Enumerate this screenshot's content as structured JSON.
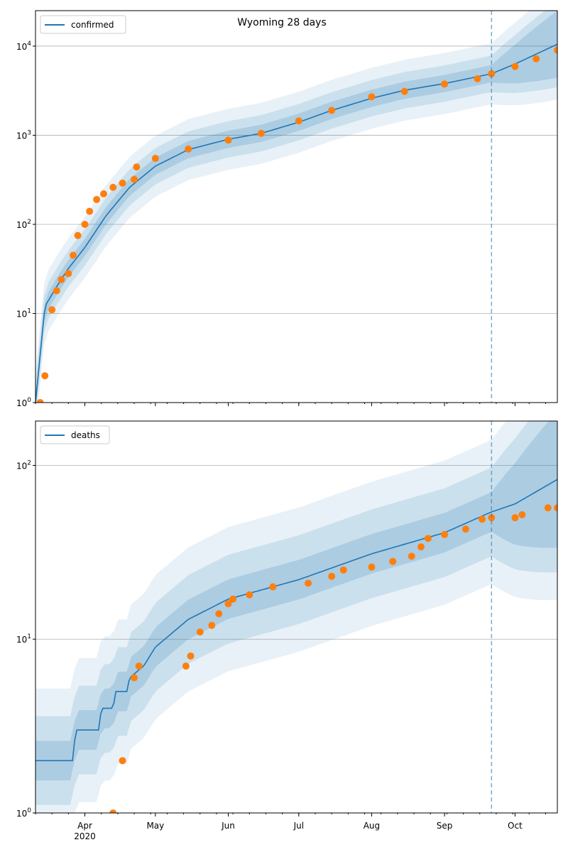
{
  "figure_title": "Wyoming 28 days",
  "colors": {
    "line": "#1f77b4",
    "points": "#ff7f0e",
    "band": "#1f77b4",
    "grid": "#b0b0b0",
    "divider": "#1f77b4"
  },
  "x_axis": {
    "ticks": [
      "Apr",
      "May",
      "Jun",
      "Jul",
      "Aug",
      "Sep",
      "Oct"
    ],
    "year_label": "2020",
    "start": "2020-03-11",
    "end": "2020-10-19",
    "forecast_start": "2020-09-21"
  },
  "chart_data": [
    {
      "type": "line",
      "legend": [
        "confirmed"
      ],
      "legend_position": "top-left",
      "yscale": "log",
      "ylim": [
        1,
        25000
      ],
      "yticks": [
        "10^0",
        "10^1",
        "10^2",
        "10^3",
        "10^4"
      ],
      "grid": "horizontal",
      "series": [
        {
          "name": "confirmed",
          "x": [
            "2020-03-11",
            "2020-03-15",
            "2020-03-20",
            "2020-03-25",
            "2020-04-01",
            "2020-04-10",
            "2020-04-20",
            "2020-05-01",
            "2020-05-15",
            "2020-06-01",
            "2020-06-15",
            "2020-07-01",
            "2020-07-15",
            "2020-08-01",
            "2020-08-15",
            "2020-09-01",
            "2020-09-21",
            "2020-10-01",
            "2020-10-19"
          ],
          "y": [
            1,
            12,
            20,
            32,
            55,
            125,
            260,
            450,
            690,
            900,
            1050,
            1400,
            1900,
            2600,
            3200,
            3800,
            4900,
            6300,
            10500
          ]
        }
      ],
      "observed": [
        {
          "x": "2020-03-13",
          "y": 1
        },
        {
          "x": "2020-03-15",
          "y": 2
        },
        {
          "x": "2020-03-18",
          "y": 11
        },
        {
          "x": "2020-03-20",
          "y": 18
        },
        {
          "x": "2020-03-22",
          "y": 24
        },
        {
          "x": "2020-03-25",
          "y": 28
        },
        {
          "x": "2020-03-27",
          "y": 45
        },
        {
          "x": "2020-03-29",
          "y": 75
        },
        {
          "x": "2020-04-01",
          "y": 100
        },
        {
          "x": "2020-04-03",
          "y": 140
        },
        {
          "x": "2020-04-06",
          "y": 190
        },
        {
          "x": "2020-04-09",
          "y": 220
        },
        {
          "x": "2020-04-13",
          "y": 260
        },
        {
          "x": "2020-04-17",
          "y": 290
        },
        {
          "x": "2020-04-22",
          "y": 320
        },
        {
          "x": "2020-04-23",
          "y": 440
        },
        {
          "x": "2020-05-01",
          "y": 550
        },
        {
          "x": "2020-05-15",
          "y": 700
        },
        {
          "x": "2020-06-01",
          "y": 880
        },
        {
          "x": "2020-06-15",
          "y": 1050
        },
        {
          "x": "2020-07-01",
          "y": 1450
        },
        {
          "x": "2020-07-15",
          "y": 1900
        },
        {
          "x": "2020-08-01",
          "y": 2700
        },
        {
          "x": "2020-08-15",
          "y": 3100
        },
        {
          "x": "2020-09-01",
          "y": 3750
        },
        {
          "x": "2020-09-15",
          "y": 4300
        },
        {
          "x": "2020-09-21",
          "y": 4900
        },
        {
          "x": "2020-10-01",
          "y": 5900
        },
        {
          "x": "2020-10-10",
          "y": 7200
        },
        {
          "x": "2020-10-19",
          "y": 9000
        }
      ]
    },
    {
      "type": "line",
      "legend": [
        "deaths"
      ],
      "legend_position": "top-left",
      "yscale": "log",
      "ylim": [
        1,
        180
      ],
      "yticks": [
        "10^0",
        "10^1",
        "10^2"
      ],
      "grid": "horizontal",
      "series": [
        {
          "name": "deaths",
          "x": [
            "2020-03-11",
            "2020-03-27",
            "2020-03-28",
            "2020-04-07",
            "2020-04-08",
            "2020-04-13",
            "2020-04-14",
            "2020-04-19",
            "2020-04-20",
            "2020-04-26",
            "2020-05-01",
            "2020-05-15",
            "2020-06-01",
            "2020-07-01",
            "2020-08-01",
            "2020-09-01",
            "2020-09-21",
            "2020-10-01",
            "2020-10-19"
          ],
          "y": [
            2,
            2,
            3,
            3,
            4,
            4,
            5,
            5,
            6,
            7,
            9,
            13,
            17,
            22,
            31,
            41,
            54,
            60,
            83
          ]
        }
      ],
      "observed": [
        {
          "x": "2020-04-13",
          "y": 1
        },
        {
          "x": "2020-04-17",
          "y": 2
        },
        {
          "x": "2020-04-22",
          "y": 6
        },
        {
          "x": "2020-04-24",
          "y": 7
        },
        {
          "x": "2020-05-14",
          "y": 7
        },
        {
          "x": "2020-05-16",
          "y": 8
        },
        {
          "x": "2020-05-20",
          "y": 11
        },
        {
          "x": "2020-05-25",
          "y": 12
        },
        {
          "x": "2020-05-28",
          "y": 14
        },
        {
          "x": "2020-06-01",
          "y": 16
        },
        {
          "x": "2020-06-03",
          "y": 17
        },
        {
          "x": "2020-06-10",
          "y": 18
        },
        {
          "x": "2020-06-20",
          "y": 20
        },
        {
          "x": "2020-07-05",
          "y": 21
        },
        {
          "x": "2020-07-15",
          "y": 23
        },
        {
          "x": "2020-07-20",
          "y": 25
        },
        {
          "x": "2020-08-01",
          "y": 26
        },
        {
          "x": "2020-08-10",
          "y": 28
        },
        {
          "x": "2020-08-18",
          "y": 30
        },
        {
          "x": "2020-08-22",
          "y": 34
        },
        {
          "x": "2020-08-25",
          "y": 38
        },
        {
          "x": "2020-09-01",
          "y": 40
        },
        {
          "x": "2020-09-10",
          "y": 43
        },
        {
          "x": "2020-09-17",
          "y": 49
        },
        {
          "x": "2020-09-21",
          "y": 50
        },
        {
          "x": "2020-10-01",
          "y": 50
        },
        {
          "x": "2020-10-04",
          "y": 52
        },
        {
          "x": "2020-10-15",
          "y": 57
        },
        {
          "x": "2020-10-19",
          "y": 57
        }
      ]
    }
  ]
}
